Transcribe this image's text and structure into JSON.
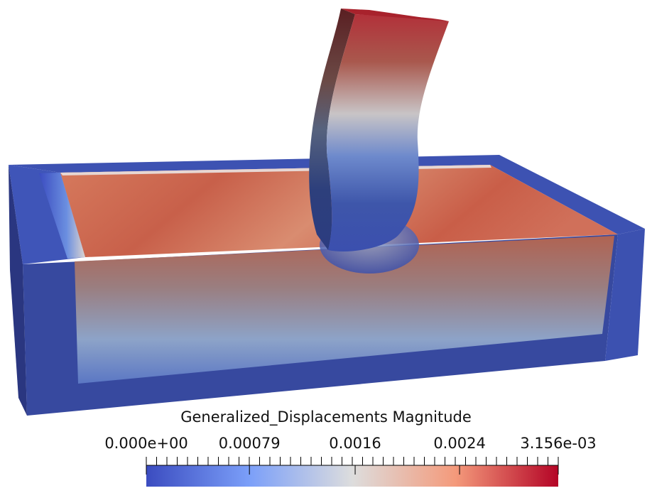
{
  "render": {
    "scalar_title": "Generalized_Displacements Magnitude",
    "colormap": {
      "name": "cool-to-warm",
      "low_color": "#3b4cc0",
      "mid_color": "#dddddd",
      "high_color": "#b40426"
    },
    "color_bar": {
      "range": [
        0.0,
        0.003156
      ],
      "labels": [
        {
          "text": "0.000e+00",
          "value": 0.0
        },
        {
          "text": "0.00079",
          "value": 0.00079
        },
        {
          "text": "0.0016",
          "value": 0.0016
        },
        {
          "text": "0.0024",
          "value": 0.0024
        },
        {
          "text": "3.156e-03",
          "value": 0.003156
        }
      ]
    }
  }
}
